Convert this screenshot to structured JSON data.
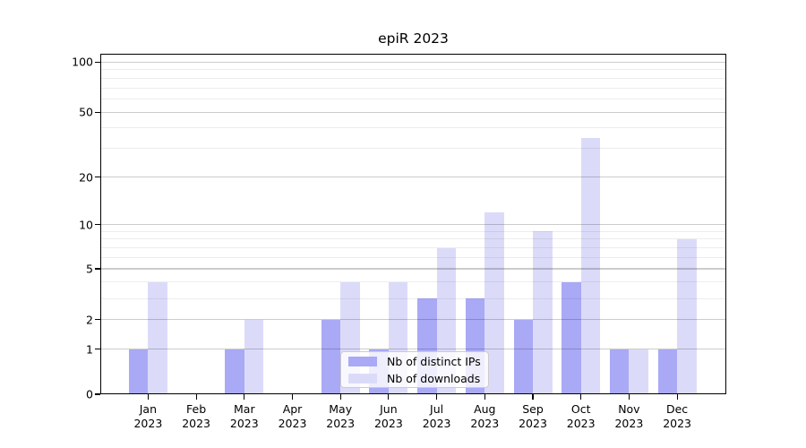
{
  "chart_data": {
    "type": "bar",
    "title": "epiR 2023",
    "year": "2023",
    "categories": [
      "Jan",
      "Feb",
      "Mar",
      "Apr",
      "May",
      "Jun",
      "Jul",
      "Aug",
      "Sep",
      "Oct",
      "Nov",
      "Dec"
    ],
    "series": [
      {
        "name": "Nb of distinct IPs",
        "color": "#a9a9f6",
        "values": [
          1,
          0,
          1,
          0,
          2,
          1,
          3,
          3,
          2,
          4,
          1,
          1
        ]
      },
      {
        "name": "Nb of downloads",
        "color": "#dbdbf9",
        "values": [
          4,
          0,
          2,
          0,
          4,
          4,
          7,
          12,
          9,
          35,
          1,
          8
        ]
      }
    ],
    "yscale": "log1p",
    "ylim": [
      0,
      100
    ],
    "yticks": [
      0,
      1,
      2,
      5,
      10,
      20,
      50,
      100
    ],
    "yticks_minor": [
      3,
      4,
      6,
      7,
      8,
      9,
      30,
      40,
      60,
      70,
      80,
      90
    ],
    "grid": true,
    "legend_position": "lower center"
  }
}
